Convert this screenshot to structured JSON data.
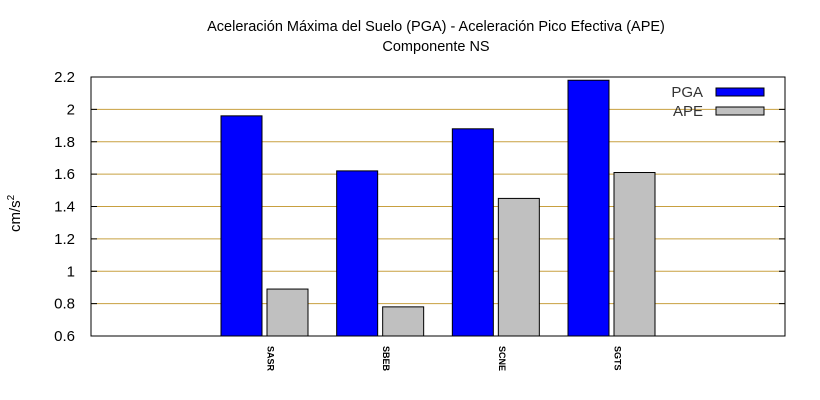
{
  "chart_data": {
    "type": "bar",
    "title": "Aceleración Máxima del Suelo (PGA) -  Aceleración Pico Efectiva (APE)",
    "subtitle": "Componente NS",
    "ylabel_main": "cm/s",
    "ylabel_sup": "2",
    "xlabel": "",
    "categories": [
      "SASR",
      "SBEB",
      "SCNE",
      "SGTS"
    ],
    "series": [
      {
        "name": "PGA",
        "values": [
          1.96,
          1.62,
          1.88,
          2.18
        ],
        "color": "#0000ff"
      },
      {
        "name": "APE",
        "values": [
          0.89,
          0.78,
          1.45,
          1.61
        ],
        "color": "#c0c0c0"
      }
    ],
    "ylim": [
      0.6,
      2.2
    ],
    "yticks": [
      "0.6",
      "0.8",
      "1",
      "1.2",
      "1.4",
      "1.6",
      "1.8",
      "2",
      "2.2"
    ],
    "grid": true,
    "grid_color": "#c8a040",
    "legend_position": "top-right"
  }
}
